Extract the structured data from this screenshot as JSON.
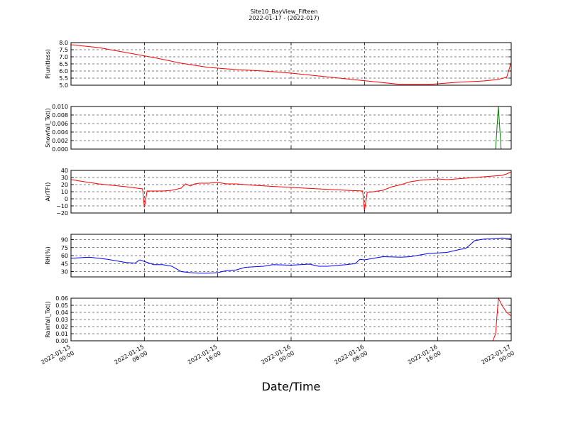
{
  "chart_data": {
    "type": "line",
    "title": "Site10_BayView_Fifteen",
    "subtitle": "2022-01-17 - (2022-017)",
    "xlabel": "Date/Time",
    "x_ticks": [
      {
        "line1": "2022-01-15",
        "line2": "00:00"
      },
      {
        "line1": "2022-01-15",
        "line2": "08:00"
      },
      {
        "line1": "2022-01-15",
        "line2": "16:00"
      },
      {
        "line1": "2022-01-16",
        "line2": "00:00"
      },
      {
        "line1": "2022-01-16",
        "line2": "08:00"
      },
      {
        "line1": "2022-01-16",
        "line2": "16:00"
      },
      {
        "line1": "2022-01-17",
        "line2": "00:00"
      }
    ],
    "xlim_hours": [
      0,
      48
    ],
    "grid": true,
    "panels": [
      {
        "ylabel": "P(unitless)",
        "ylim": [
          5.0,
          8.0
        ],
        "yticks": [
          "5.0",
          "5.5",
          "6.0",
          "6.5",
          "7.0",
          "7.5",
          "8.0"
        ],
        "color": "#ff0000",
        "x": [
          0,
          3,
          6,
          9,
          12,
          15,
          18,
          21,
          24,
          27,
          30,
          33,
          36,
          39,
          42,
          45,
          46.5,
          47.5,
          48
        ],
        "y": [
          7.85,
          7.65,
          7.3,
          6.95,
          6.55,
          6.25,
          6.1,
          6.0,
          5.85,
          5.65,
          5.45,
          5.25,
          5.05,
          5.05,
          5.2,
          5.3,
          5.4,
          5.55,
          6.6
        ]
      },
      {
        "ylabel": "Snowfall_Tot()",
        "ylim": [
          0.0,
          0.01
        ],
        "yticks": [
          "0.000",
          "0.002",
          "0.004",
          "0.006",
          "0.008",
          "0.010"
        ],
        "color": "#008000",
        "x": [
          0,
          46.3,
          46.6,
          46.9,
          48
        ],
        "y": [
          0,
          0,
          0.01,
          0,
          0
        ]
      },
      {
        "ylabel": "AirTF()",
        "ylim": [
          -20,
          40
        ],
        "yticks": [
          "−20",
          "−10",
          "0",
          "10",
          "20",
          "30",
          "40"
        ],
        "color": "#ff0000",
        "x": [
          0,
          3,
          6,
          7.8,
          8.0,
          8.3,
          9,
          10,
          11,
          12,
          12.5,
          13,
          13.5,
          14,
          15,
          16,
          17,
          18,
          19,
          20,
          24,
          27,
          30,
          31.8,
          32.0,
          32.3,
          33,
          34,
          35,
          36,
          37,
          38,
          39,
          40,
          41,
          42,
          43,
          44,
          45,
          46,
          47,
          47.5,
          48
        ],
        "y": [
          27,
          21,
          17,
          14,
          -12,
          11,
          11,
          11,
          12,
          15,
          21,
          18,
          21,
          22,
          22,
          23,
          21,
          21,
          20,
          19,
          16,
          14,
          12,
          11,
          -17,
          9,
          10,
          12,
          17,
          20,
          24,
          26,
          27,
          28,
          27,
          28,
          29,
          30,
          31,
          32,
          33,
          35,
          38
        ]
      },
      {
        "ylabel": "RH(%)",
        "ylim": [
          20,
          100
        ],
        "yticks": [
          "30",
          "45",
          "60",
          "75",
          "90"
        ],
        "color": "#0000ff",
        "x": [
          0,
          2,
          4,
          6,
          7,
          7.5,
          8,
          9,
          10,
          11,
          12,
          13,
          14,
          15,
          16,
          17,
          18,
          19,
          20,
          21,
          22,
          24,
          26,
          27,
          28,
          30,
          31,
          31.5,
          32,
          33,
          34,
          36,
          37,
          38,
          39,
          40,
          41,
          42,
          42.5,
          43,
          43.5,
          44,
          45,
          46,
          47,
          48
        ],
        "y": [
          55,
          57,
          53,
          47,
          46,
          52,
          49,
          43,
          43,
          40,
          30,
          28,
          27,
          27,
          28,
          32,
          33,
          38,
          39,
          40,
          43,
          42,
          44,
          40,
          40,
          43,
          45,
          53,
          52,
          55,
          58,
          57,
          58,
          61,
          64,
          65,
          66,
          70,
          72,
          73,
          80,
          88,
          91,
          92,
          93,
          92
        ]
      },
      {
        "ylabel": "Rainfall_Tot()",
        "ylim": [
          0.0,
          0.06
        ],
        "yticks": [
          "0.00",
          "0.01",
          "0.02",
          "0.03",
          "0.04",
          "0.05",
          "0.06"
        ],
        "color": "#ff0000",
        "x": [
          0,
          46.0,
          46.3,
          46.6,
          47.0,
          47.5,
          48
        ],
        "y": [
          0,
          0,
          0.01,
          0.06,
          0.05,
          0.04,
          0.035
        ]
      }
    ]
  }
}
